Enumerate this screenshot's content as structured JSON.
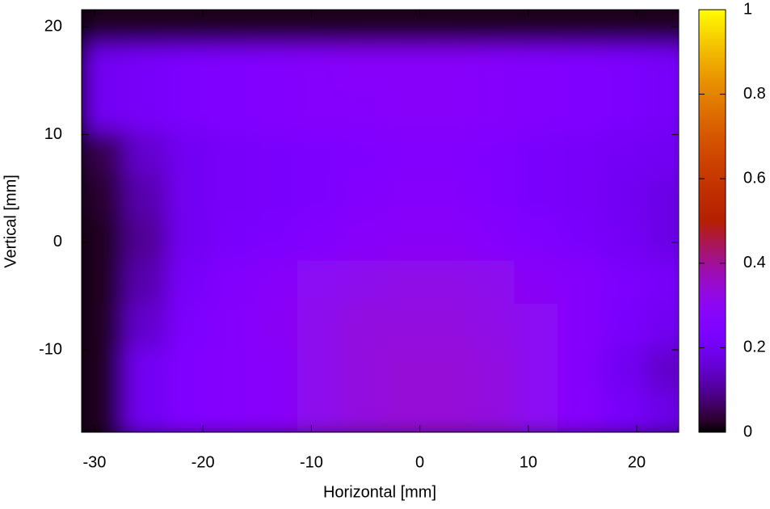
{
  "chart_data": {
    "type": "heatmap",
    "xlabel": "Horizontal [mm]",
    "ylabel": "Vertical [mm]",
    "x": [
      -29,
      -25,
      -21,
      -17,
      -13,
      -9,
      -5,
      -1,
      3,
      7,
      11,
      15,
      19,
      23
    ],
    "y": [
      20,
      16,
      12,
      8,
      4,
      0,
      -4,
      -8,
      -12,
      -16
    ],
    "values": [
      [
        0.02,
        0.02,
        0.02,
        0.02,
        0.02,
        0.02,
        0.02,
        0.02,
        0.02,
        0.02,
        0.02,
        0.02,
        0.02,
        0.02
      ],
      [
        0.2,
        0.22,
        0.24,
        0.25,
        0.26,
        0.27,
        0.28,
        0.28,
        0.28,
        0.27,
        0.26,
        0.25,
        0.24,
        0.22
      ],
      [
        0.2,
        0.22,
        0.24,
        0.25,
        0.26,
        0.27,
        0.27,
        0.28,
        0.28,
        0.27,
        0.26,
        0.25,
        0.24,
        0.22
      ],
      [
        0.05,
        0.15,
        0.2,
        0.22,
        0.23,
        0.24,
        0.25,
        0.26,
        0.26,
        0.25,
        0.23,
        0.22,
        0.21,
        0.2
      ],
      [
        0.03,
        0.12,
        0.2,
        0.22,
        0.23,
        0.24,
        0.26,
        0.27,
        0.27,
        0.25,
        0.23,
        0.22,
        0.2,
        0.18
      ],
      [
        0.02,
        0.1,
        0.2,
        0.23,
        0.24,
        0.26,
        0.28,
        0.29,
        0.29,
        0.27,
        0.25,
        0.23,
        0.21,
        0.18
      ],
      [
        0.02,
        0.12,
        0.22,
        0.26,
        0.28,
        0.3,
        0.31,
        0.32,
        0.32,
        0.31,
        0.29,
        0.27,
        0.24,
        0.22
      ],
      [
        0.02,
        0.15,
        0.24,
        0.27,
        0.29,
        0.31,
        0.33,
        0.33,
        0.33,
        0.32,
        0.3,
        0.27,
        0.23,
        0.2
      ],
      [
        0.02,
        0.2,
        0.25,
        0.27,
        0.28,
        0.31,
        0.33,
        0.34,
        0.34,
        0.33,
        0.3,
        0.27,
        0.2,
        0.15
      ],
      [
        0.02,
        0.2,
        0.25,
        0.27,
        0.28,
        0.31,
        0.33,
        0.34,
        0.34,
        0.33,
        0.3,
        0.27,
        0.22,
        0.18
      ]
    ],
    "xlim": [
      -31.19,
      23.87
    ],
    "ylim": [
      -17.65,
      21.6
    ],
    "xticks": [
      -30,
      -20,
      -10,
      0,
      10,
      20
    ],
    "yticks": [
      -10,
      0,
      10,
      20
    ],
    "clim": [
      0,
      1
    ],
    "cticks": [
      0,
      0.2,
      0.4,
      0.6,
      0.8,
      1
    ]
  }
}
